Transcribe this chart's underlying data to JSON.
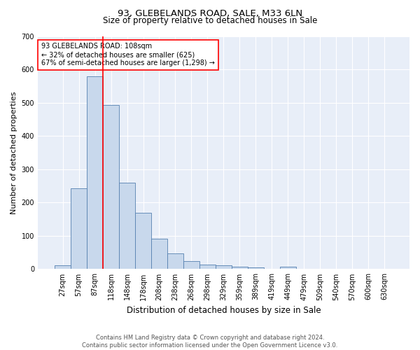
{
  "title": "93, GLEBELANDS ROAD, SALE, M33 6LN",
  "subtitle": "Size of property relative to detached houses in Sale",
  "xlabel": "Distribution of detached houses by size in Sale",
  "ylabel": "Number of detached properties",
  "footer_line1": "Contains HM Land Registry data © Crown copyright and database right 2024.",
  "footer_line2": "Contains public sector information licensed under the Open Government Licence v3.0.",
  "bar_labels": [
    "27sqm",
    "57sqm",
    "87sqm",
    "118sqm",
    "148sqm",
    "178sqm",
    "208sqm",
    "238sqm",
    "268sqm",
    "298sqm",
    "329sqm",
    "359sqm",
    "389sqm",
    "419sqm",
    "449sqm",
    "479sqm",
    "509sqm",
    "540sqm",
    "570sqm",
    "600sqm",
    "630sqm"
  ],
  "bar_values": [
    12,
    242,
    580,
    493,
    260,
    170,
    92,
    48,
    25,
    14,
    12,
    8,
    5,
    0,
    7,
    0,
    0,
    0,
    0,
    0,
    0
  ],
  "bar_color": "#c8d8ec",
  "bar_edge_color": "#5580b0",
  "vline_color": "red",
  "vline_x_index": 2.5,
  "annotation_text": "93 GLEBELANDS ROAD: 108sqm\n← 32% of detached houses are smaller (625)\n67% of semi-detached houses are larger (1,298) →",
  "annotation_box_color": "white",
  "annotation_box_edge": "red",
  "ylim": [
    0,
    700
  ],
  "yticks": [
    0,
    100,
    200,
    300,
    400,
    500,
    600,
    700
  ],
  "background_color": "#e8eef8",
  "grid_color": "white",
  "title_fontsize": 9.5,
  "subtitle_fontsize": 8.5,
  "xlabel_fontsize": 8.5,
  "ylabel_fontsize": 8,
  "tick_fontsize": 7,
  "footer_fontsize": 6,
  "annotation_fontsize": 7
}
